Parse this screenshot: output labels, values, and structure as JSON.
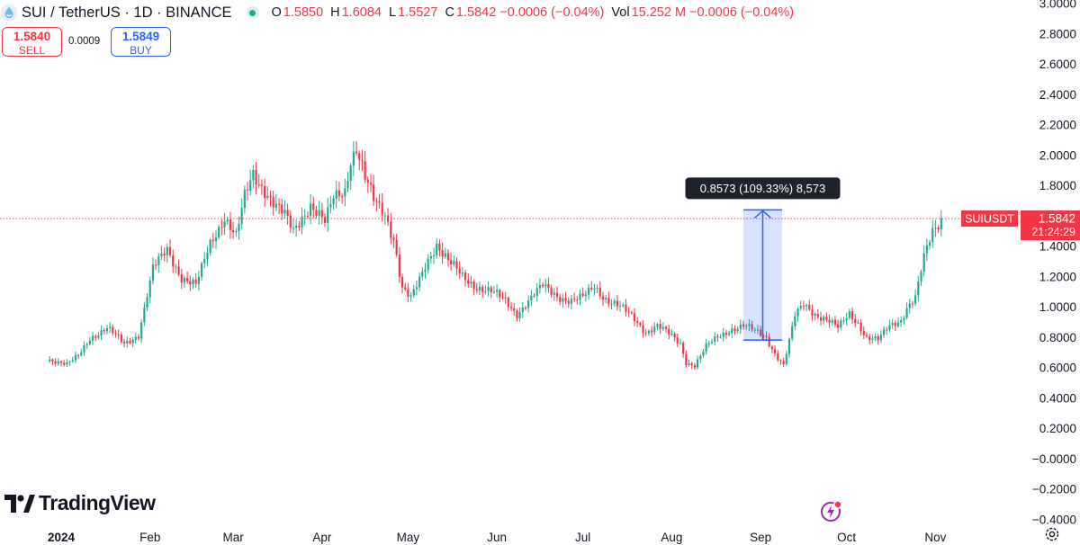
{
  "header": {
    "symbol_title": "SUI / TetherUS · 1D · BINANCE",
    "market_status": "open",
    "ohlc": [
      {
        "label": "O",
        "value": "1.5850"
      },
      {
        "label": "H",
        "value": "1.6084"
      },
      {
        "label": "L",
        "value": "1.5527"
      },
      {
        "label": "C",
        "value": "1.5842 −0.0006 (−0.04%)"
      }
    ],
    "volume_label": "Vol",
    "volume_value": "15.252 M −0.0006 (−0.04%)"
  },
  "trade": {
    "sell_price": "1.5840",
    "sell_label": "SELL",
    "spread": "0.0009",
    "buy_price": "1.5849",
    "buy_label": "BUY"
  },
  "brand": {
    "name": "TradingView"
  },
  "price_tag": {
    "symbol": "SUIUSDT",
    "price": "1.5842",
    "countdown": "21:24:29"
  },
  "measure": {
    "label": "0.8573 (109.33%) 8,573",
    "from_price": 0.7842,
    "to_price": 1.6415
  },
  "colors": {
    "up": "#22ab94",
    "down": "#f23645",
    "measure": "#2962ff",
    "axis_text": "#131722",
    "bg": "#ffffff"
  },
  "chart_data": {
    "type": "candlestick",
    "symbol": "SUIUSDT",
    "interval": "1D",
    "y_axis": {
      "ylim": [
        -0.4,
        3.0
      ],
      "ticks": [
        "3.0000",
        "2.8000",
        "2.6000",
        "2.4000",
        "2.2000",
        "2.0000",
        "1.8000",
        "1.6000",
        "1.4000",
        "1.2000",
        "1.0000",
        "0.8000",
        "0.6000",
        "0.4000",
        "0.2000",
        "−0.0000",
        "−0.2000",
        "−0.4000"
      ],
      "tick_values": [
        3.0,
        2.8,
        2.6,
        2.4,
        2.2,
        2.0,
        1.8,
        1.6,
        1.4,
        1.2,
        1.0,
        0.8,
        0.6,
        0.4,
        0.2,
        0.0,
        -0.2,
        -0.4
      ]
    },
    "x_axis": {
      "labels": [
        "2024",
        "Feb",
        "Mar",
        "Apr",
        "May",
        "Jun",
        "Jul",
        "Aug",
        "Sep",
        "Oct",
        "Nov"
      ],
      "dates": [
        "2024-01-01",
        "2024-02-01",
        "2024-03-01",
        "2024-04-01",
        "2024-05-01",
        "2024-06-01",
        "2024-07-01",
        "2024-08-01",
        "2024-09-01",
        "2024-10-01",
        "2024-11-01"
      ]
    },
    "last_price": 1.5842,
    "key_closes": [
      {
        "date": "2023-12-28",
        "close": 0.66
      },
      {
        "date": "2024-01-03",
        "close": 0.62
      },
      {
        "date": "2024-01-07",
        "close": 0.68
      },
      {
        "date": "2024-01-11",
        "close": 0.8
      },
      {
        "date": "2024-01-17",
        "close": 0.86
      },
      {
        "date": "2024-01-23",
        "close": 0.76
      },
      {
        "date": "2024-01-28",
        "close": 0.82
      },
      {
        "date": "2024-02-02",
        "close": 1.25
      },
      {
        "date": "2024-02-07",
        "close": 1.38
      },
      {
        "date": "2024-02-12",
        "close": 1.2
      },
      {
        "date": "2024-02-17",
        "close": 1.14
      },
      {
        "date": "2024-02-22",
        "close": 1.42
      },
      {
        "date": "2024-02-27",
        "close": 1.6
      },
      {
        "date": "2024-03-02",
        "close": 1.46
      },
      {
        "date": "2024-03-05",
        "close": 1.72
      },
      {
        "date": "2024-03-08",
        "close": 1.88
      },
      {
        "date": "2024-03-12",
        "close": 1.78
      },
      {
        "date": "2024-03-16",
        "close": 1.66
      },
      {
        "date": "2024-03-19",
        "close": 1.6
      },
      {
        "date": "2024-03-22",
        "close": 1.5
      },
      {
        "date": "2024-03-25",
        "close": 1.6
      },
      {
        "date": "2024-03-28",
        "close": 1.68
      },
      {
        "date": "2024-04-02",
        "close": 1.55
      },
      {
        "date": "2024-04-05",
        "close": 1.72
      },
      {
        "date": "2024-04-09",
        "close": 1.78
      },
      {
        "date": "2024-04-11",
        "close": 1.98
      },
      {
        "date": "2024-04-13",
        "close": 2.05
      },
      {
        "date": "2024-04-16",
        "close": 1.84
      },
      {
        "date": "2024-04-19",
        "close": 1.7
      },
      {
        "date": "2024-04-23",
        "close": 1.62
      },
      {
        "date": "2024-04-26",
        "close": 1.46
      },
      {
        "date": "2024-04-29",
        "close": 1.12
      },
      {
        "date": "2024-05-02",
        "close": 1.05
      },
      {
        "date": "2024-05-05",
        "close": 1.18
      },
      {
        "date": "2024-05-08",
        "close": 1.32
      },
      {
        "date": "2024-05-11",
        "close": 1.42
      },
      {
        "date": "2024-05-15",
        "close": 1.3
      },
      {
        "date": "2024-05-20",
        "close": 1.2
      },
      {
        "date": "2024-05-25",
        "close": 1.14
      },
      {
        "date": "2024-05-30",
        "close": 1.1
      },
      {
        "date": "2024-06-04",
        "close": 1.04
      },
      {
        "date": "2024-06-08",
        "close": 0.96
      },
      {
        "date": "2024-06-13",
        "close": 1.06
      },
      {
        "date": "2024-06-17",
        "close": 1.14
      },
      {
        "date": "2024-06-22",
        "close": 1.08
      },
      {
        "date": "2024-06-27",
        "close": 1.04
      },
      {
        "date": "2024-07-01",
        "close": 1.06
      },
      {
        "date": "2024-07-05",
        "close": 1.14
      },
      {
        "date": "2024-07-09",
        "close": 1.06
      },
      {
        "date": "2024-07-14",
        "close": 1.0
      },
      {
        "date": "2024-07-19",
        "close": 0.92
      },
      {
        "date": "2024-07-23",
        "close": 0.84
      },
      {
        "date": "2024-07-27",
        "close": 0.88
      },
      {
        "date": "2024-07-31",
        "close": 0.82
      },
      {
        "date": "2024-08-04",
        "close": 0.76
      },
      {
        "date": "2024-08-06",
        "close": 0.64
      },
      {
        "date": "2024-08-09",
        "close": 0.62
      },
      {
        "date": "2024-08-13",
        "close": 0.74
      },
      {
        "date": "2024-08-17",
        "close": 0.8
      },
      {
        "date": "2024-08-22",
        "close": 0.86
      },
      {
        "date": "2024-08-26",
        "close": 0.88
      },
      {
        "date": "2024-08-30",
        "close": 0.84
      },
      {
        "date": "2024-09-03",
        "close": 0.8
      },
      {
        "date": "2024-09-06",
        "close": 0.7
      },
      {
        "date": "2024-09-09",
        "close": 0.62
      },
      {
        "date": "2024-09-13",
        "close": 0.94
      },
      {
        "date": "2024-09-16",
        "close": 1.02
      },
      {
        "date": "2024-09-20",
        "close": 0.96
      },
      {
        "date": "2024-09-24",
        "close": 0.92
      },
      {
        "date": "2024-09-28",
        "close": 0.86
      },
      {
        "date": "2024-10-02",
        "close": 0.96
      },
      {
        "date": "2024-10-05",
        "close": 0.9
      },
      {
        "date": "2024-10-08",
        "close": 0.8
      },
      {
        "date": "2024-10-12",
        "close": 0.78
      },
      {
        "date": "2024-10-16",
        "close": 0.88
      },
      {
        "date": "2024-10-20",
        "close": 0.92
      },
      {
        "date": "2024-10-22",
        "close": 1.0
      },
      {
        "date": "2024-10-25",
        "close": 1.06
      },
      {
        "date": "2024-10-28",
        "close": 1.32
      },
      {
        "date": "2024-10-31",
        "close": 1.5
      },
      {
        "date": "2024-11-03",
        "close": 1.5842
      }
    ]
  }
}
